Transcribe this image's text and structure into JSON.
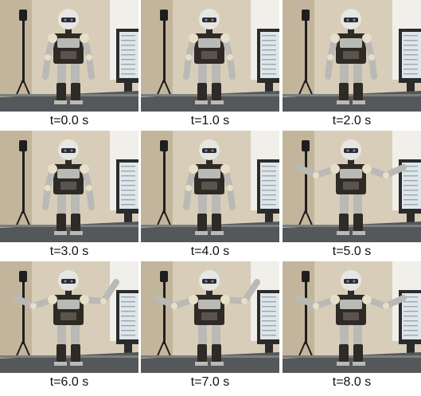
{
  "frames": [
    {
      "label": "t=0.0 s",
      "left_arm": "down",
      "right_arm": "down"
    },
    {
      "label": "t=1.0 s",
      "left_arm": "down",
      "right_arm": "down"
    },
    {
      "label": "t=2.0 s",
      "left_arm": "down",
      "right_arm": "down"
    },
    {
      "label": "t=3.0 s",
      "left_arm": "down",
      "right_arm": "down"
    },
    {
      "label": "t=4.0 s",
      "left_arm": "down",
      "right_arm": "down"
    },
    {
      "label": "t=5.0 s",
      "left_arm": "side",
      "right_arm": "side"
    },
    {
      "label": "t=6.0 s",
      "left_arm": "side",
      "right_arm": "raised"
    },
    {
      "label": "t=7.0 s",
      "left_arm": "side",
      "right_arm": "raised"
    },
    {
      "label": "t=8.0 s",
      "left_arm": "side",
      "right_arm": "side"
    }
  ],
  "colors": {
    "wall": "#d8cdb8",
    "wall_shadow": "#c3b59c",
    "curtain": "#f1efe9",
    "monitor_frame": "#2b2b2b",
    "monitor_screen": "#dfe6ea",
    "robot_metal": "#b9b9b6",
    "robot_dark": "#2e2a25",
    "robot_joint": "#e8dfc8",
    "table": "#55585a",
    "stand": "#1e1e1e"
  }
}
